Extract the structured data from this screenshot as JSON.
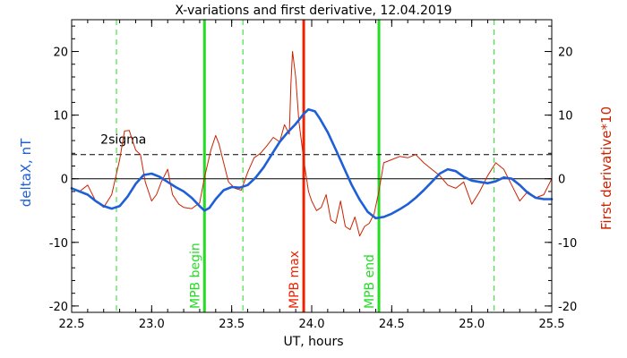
{
  "chart_data": {
    "type": "line",
    "title": "X-variations and first derivative, 12.04.2019",
    "xlabel": "UT, hours",
    "ylabel_left": "deltaX, nT",
    "ylabel_right": "First derivative*10",
    "xlim": [
      22.5,
      25.5
    ],
    "ylim": [
      -21,
      25
    ],
    "x_ticks": [
      22.5,
      23.0,
      23.5,
      24.0,
      24.5,
      25.0,
      25.5
    ],
    "x_tick_labels": [
      "22.5",
      "23.0",
      "23.5",
      "24.0",
      "24.5",
      "25.0",
      "25.5"
    ],
    "y_ticks": [
      -20,
      -10,
      0,
      10,
      20
    ],
    "y_tick_labels": [
      "-20",
      "-10",
      "0",
      "10",
      "20"
    ],
    "threshold": {
      "value": 3.8,
      "label": "2sigma"
    },
    "markers": [
      {
        "label": "",
        "x": 22.78,
        "color": "#22dd22",
        "style": "dashed"
      },
      {
        "label": "MPB begin",
        "x": 23.33,
        "color": "#22dd22",
        "style": "solid"
      },
      {
        "label": "",
        "x": 23.57,
        "color": "#22dd22",
        "style": "dashed"
      },
      {
        "label": "MPB max",
        "x": 23.95,
        "color": "#ee2200",
        "style": "solid"
      },
      {
        "label": "MPB end",
        "x": 24.42,
        "color": "#22dd22",
        "style": "solid"
      },
      {
        "label": "",
        "x": 25.14,
        "color": "#22dd22",
        "style": "dashed"
      }
    ],
    "series": [
      {
        "name": "deltaX, nT",
        "color": "#1e5fd8",
        "x": [
          22.5,
          22.6,
          22.65,
          22.7,
          22.75,
          22.8,
          22.85,
          22.9,
          22.95,
          23.0,
          23.05,
          23.1,
          23.15,
          23.2,
          23.25,
          23.3,
          23.33,
          23.36,
          23.4,
          23.45,
          23.5,
          23.55,
          23.6,
          23.65,
          23.7,
          23.75,
          23.8,
          23.85,
          23.9,
          23.95,
          23.98,
          24.02,
          24.05,
          24.1,
          24.15,
          24.2,
          24.25,
          24.3,
          24.35,
          24.4,
          24.45,
          24.5,
          24.55,
          24.6,
          24.65,
          24.7,
          24.75,
          24.8,
          24.85,
          24.9,
          24.95,
          25.0,
          25.05,
          25.1,
          25.15,
          25.2,
          25.25,
          25.3,
          25.35,
          25.4,
          25.45,
          25.5
        ],
        "values": [
          -1.5,
          -2.5,
          -3.5,
          -4.3,
          -4.7,
          -4.3,
          -2.8,
          -0.8,
          0.6,
          0.8,
          0.3,
          -0.5,
          -1.3,
          -2.0,
          -3.0,
          -4.3,
          -5.0,
          -4.6,
          -3.2,
          -1.8,
          -1.3,
          -1.4,
          -1.0,
          0.2,
          1.8,
          3.8,
          5.8,
          7.3,
          8.6,
          10.2,
          10.9,
          10.6,
          9.5,
          7.3,
          4.6,
          1.8,
          -1.0,
          -3.3,
          -5.2,
          -6.2,
          -6.0,
          -5.5,
          -4.8,
          -4.0,
          -3.0,
          -1.8,
          -0.5,
          0.8,
          1.5,
          1.2,
          0.3,
          -0.3,
          -0.5,
          -0.7,
          -0.4,
          0.2,
          0.0,
          -1.0,
          -2.2,
          -3.0,
          -3.2,
          -3.2
        ]
      },
      {
        "name": "First derivative*10",
        "color": "#cc2200",
        "x": [
          22.5,
          22.55,
          22.6,
          22.65,
          22.7,
          22.75,
          22.8,
          22.83,
          22.86,
          22.88,
          22.9,
          22.93,
          22.96,
          23.0,
          23.03,
          23.06,
          23.1,
          23.13,
          23.17,
          23.2,
          23.25,
          23.3,
          23.33,
          23.37,
          23.4,
          23.42,
          23.45,
          23.48,
          23.52,
          23.56,
          23.6,
          23.64,
          23.68,
          23.72,
          23.76,
          23.8,
          23.83,
          23.86,
          23.87,
          23.88,
          23.9,
          23.92,
          23.95,
          23.98,
          24.0,
          24.03,
          24.06,
          24.09,
          24.12,
          24.15,
          24.18,
          24.21,
          24.24,
          24.27,
          24.3,
          24.33,
          24.36,
          24.39,
          24.42,
          24.45,
          24.5,
          24.55,
          24.6,
          24.65,
          24.7,
          24.75,
          24.8,
          24.85,
          24.9,
          24.95,
          25.0,
          25.05,
          25.1,
          25.15,
          25.2,
          25.25,
          25.3,
          25.35,
          25.4,
          25.45,
          25.5
        ],
        "values": [
          -1.5,
          -2.0,
          -1.0,
          -3.5,
          -4.5,
          -2.5,
          3.0,
          7.5,
          7.6,
          6.0,
          4.5,
          3.8,
          -0.5,
          -3.5,
          -2.5,
          -0.5,
          1.5,
          -2.5,
          -4.0,
          -4.5,
          -4.7,
          -3.8,
          0.2,
          4.5,
          6.8,
          5.5,
          2.5,
          -0.5,
          -1.5,
          -1.8,
          1.0,
          3.3,
          4.0,
          5.2,
          6.5,
          5.8,
          8.5,
          7.0,
          15.0,
          20.0,
          16.0,
          9.0,
          3.0,
          -2.0,
          -3.5,
          -5.0,
          -4.5,
          -2.5,
          -6.5,
          -7.0,
          -3.5,
          -7.5,
          -8.0,
          -6.0,
          -9.0,
          -7.5,
          -7.0,
          -5.5,
          -2.0,
          2.5,
          3.0,
          3.5,
          3.3,
          3.8,
          2.5,
          1.5,
          0.5,
          -1.0,
          -1.5,
          -0.5,
          -4.0,
          -2.0,
          0.5,
          2.5,
          1.5,
          -1.0,
          -3.5,
          -2.0,
          -3.0,
          -2.5,
          0.0
        ]
      }
    ]
  }
}
